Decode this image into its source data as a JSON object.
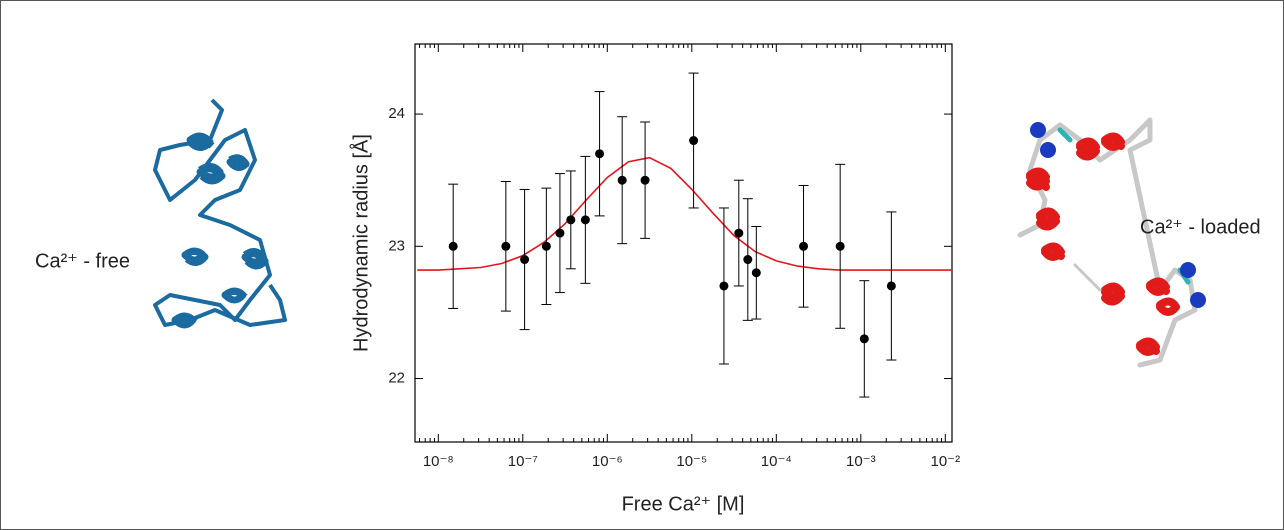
{
  "chart_data": {
    "type": "scatter",
    "xlabel": "Free Ca²⁺ [M]",
    "ylabel": "Hydrodynamic radius  [Å]",
    "annotations": [
      "Ca²⁺ - free",
      "Ca²⁺ - loaded"
    ],
    "xscale": "log",
    "xlim": [
      5.3e-09,
      0.012
    ],
    "ylim": [
      21.52,
      24.53
    ],
    "xticks": [
      {
        "value": 1e-08,
        "label": "10⁻⁸"
      },
      {
        "value": 1e-07,
        "label": "10⁻⁷"
      },
      {
        "value": 1e-06,
        "label": "10⁻⁶"
      },
      {
        "value": 1e-05,
        "label": "10⁻⁵"
      },
      {
        "value": 0.0001,
        "label": "10⁻⁴"
      },
      {
        "value": 0.001,
        "label": "10⁻³"
      },
      {
        "value": 0.01,
        "label": "10⁻²"
      }
    ],
    "yticks": [
      22,
      23,
      24
    ],
    "series": [
      {
        "type": "scatter",
        "color": "#000000",
        "x": [
          1.5e-08,
          6.3e-08,
          1.05e-07,
          1.9e-07,
          2.75e-07,
          3.7e-07,
          5.5e-07,
          8.1e-07,
          1.5e-06,
          2.8e-06,
          1.05e-05,
          2.4e-05,
          3.6e-05,
          4.6e-05,
          5.8e-05,
          0.00021,
          0.00057,
          0.0011,
          0.0023
        ],
        "values": [
          23.0,
          23.0,
          22.9,
          23.0,
          23.1,
          23.2,
          23.2,
          23.7,
          23.5,
          23.5,
          23.8,
          22.7,
          23.1,
          22.9,
          22.8,
          23.0,
          23.0,
          22.3,
          22.7
        ],
        "errors": [
          0.47,
          0.49,
          0.53,
          0.44,
          0.45,
          0.37,
          0.48,
          0.47,
          0.48,
          0.44,
          0.51,
          0.59,
          0.4,
          0.46,
          0.35,
          0.46,
          0.62,
          0.44,
          0.56
        ]
      },
      {
        "type": "line",
        "color": "#e8141c",
        "x": [
          5.62e-09,
          1e-08,
          1.78e-08,
          3.16e-08,
          5.62e-08,
          1e-07,
          1.78e-07,
          3.16e-07,
          5.62e-07,
          1e-06,
          1.78e-06,
          3.16e-06,
          5.62e-06,
          1e-05,
          1.78e-05,
          3.16e-05,
          5.62e-05,
          0.0001,
          0.000178,
          0.000316,
          0.000562,
          0.001,
          0.00178,
          0.00316,
          0.00562,
          0.01,
          0.012
        ],
        "values": [
          22.82,
          22.82,
          22.83,
          22.84,
          22.87,
          22.93,
          23.03,
          23.17,
          23.35,
          23.52,
          23.64,
          23.67,
          23.59,
          23.43,
          23.25,
          23.08,
          22.96,
          22.89,
          22.85,
          22.83,
          22.82,
          22.82,
          22.82,
          22.82,
          22.82,
          22.82,
          22.82
        ]
      }
    ]
  }
}
